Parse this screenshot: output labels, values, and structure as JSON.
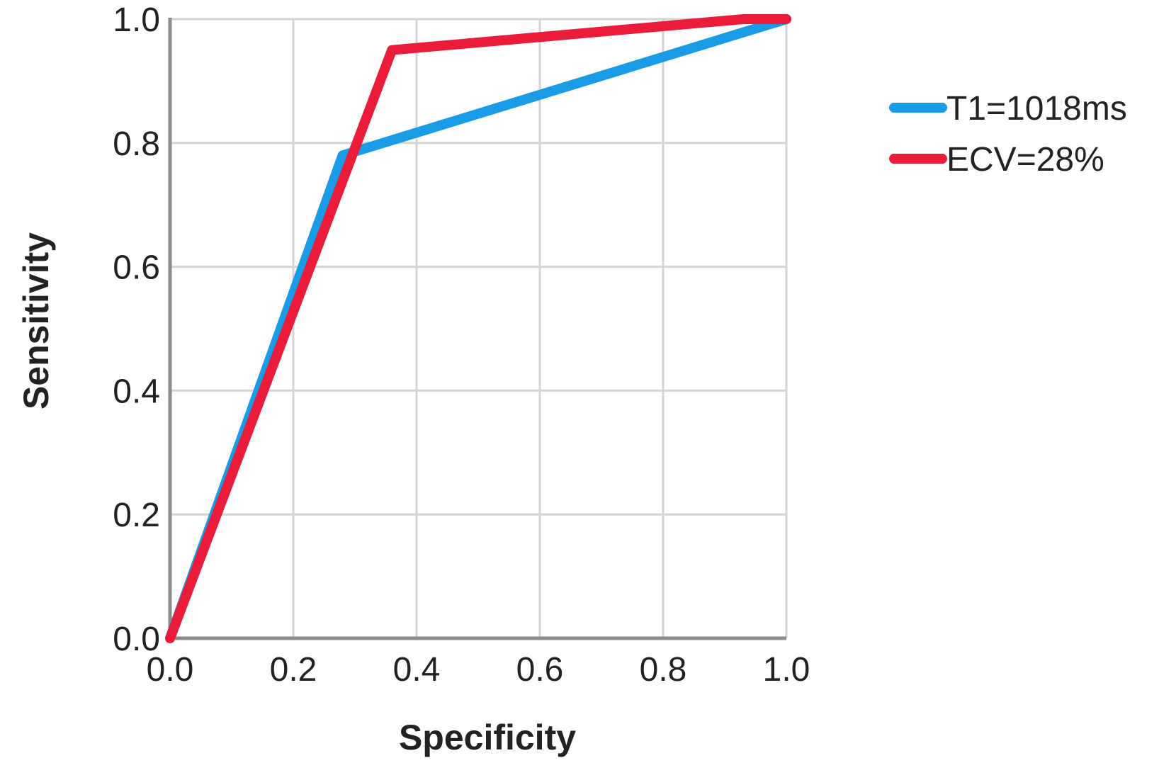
{
  "chart_data": {
    "type": "line",
    "title": "",
    "xlabel": "Specificity",
    "ylabel": "Sensitivity",
    "xlim": [
      0,
      1
    ],
    "ylim": [
      0,
      1
    ],
    "x_ticks": [
      "0.0",
      "0.2",
      "0.4",
      "0.6",
      "0.8",
      "1.0"
    ],
    "y_ticks": [
      "0.0",
      "0.2",
      "0.4",
      "0.6",
      "0.8",
      "1.0"
    ],
    "grid": true,
    "legend_position": "right",
    "series": [
      {
        "name": "T1=1018ms",
        "color": "#1a9be6",
        "points": [
          [
            0.0,
            0.0
          ],
          [
            0.28,
            0.78
          ],
          [
            1.0,
            1.0
          ]
        ]
      },
      {
        "name": "ECV=28%",
        "color": "#eb1c3a",
        "points": [
          [
            0.0,
            0.0
          ],
          [
            0.36,
            0.95
          ],
          [
            0.93,
            1.0
          ],
          [
            1.0,
            1.0
          ]
        ]
      }
    ]
  }
}
